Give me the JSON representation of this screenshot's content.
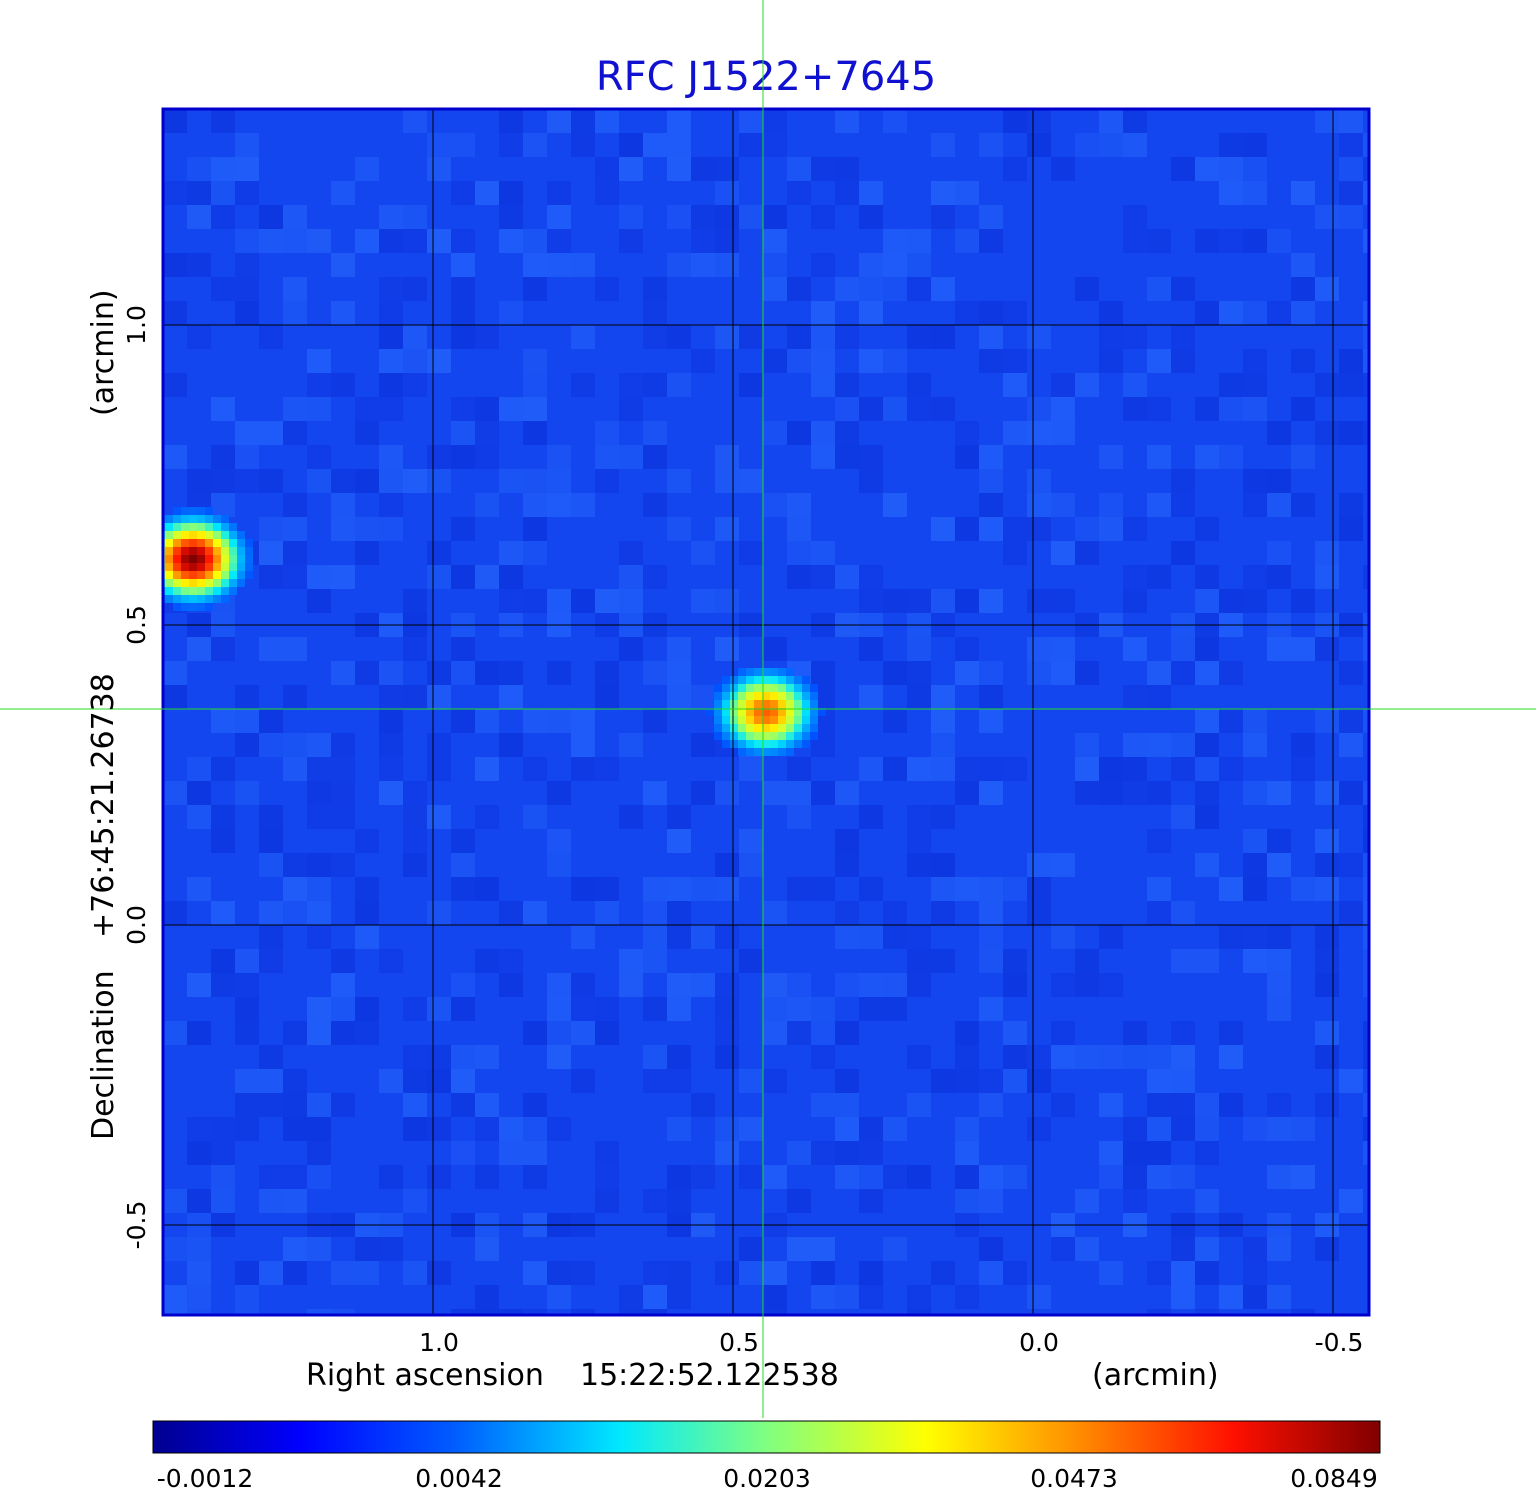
{
  "title": "RFC J1522+7645",
  "colors": {
    "title": "#1010d0",
    "frame": "#0000cc",
    "grid": "#000000",
    "crosshair": "#22dd22",
    "background": "#1446f0"
  },
  "xaxis": {
    "label": "Right ascension",
    "center": "15:22:52.122538",
    "unit": "(arcmin)"
  },
  "yaxis": {
    "label": "Declination",
    "center": "+76:45:21.26738",
    "unit": "(arcmin)"
  },
  "colorbar": {
    "colormap": "jet",
    "scale": "nonlinear",
    "tick_labels": [
      "-0.0012",
      "0.0042",
      "0.0203",
      "0.0473",
      "0.0849"
    ],
    "tick_values": [
      -0.0012,
      0.0042,
      0.0203,
      0.0473,
      0.0849
    ]
  },
  "chart_data": {
    "type": "heatmap",
    "title": "RFC J1522+7645",
    "xlabel": "Right ascension  15:22:52.122538 (arcmin)",
    "ylabel": "Declination  +76:45:21.26738 (arcmin)",
    "xlim": [
      1.45,
      -0.56
    ],
    "ylim": [
      -0.65,
      1.36
    ],
    "x_reversed": true,
    "xticks": [
      1.0,
      0.5,
      0.0,
      -0.5
    ],
    "xtick_labels": [
      "1.0",
      "0.5",
      "0.0",
      "-0.5"
    ],
    "yticks": [
      1.0,
      0.5,
      0.0,
      -0.5
    ],
    "ytick_labels": [
      "1.0",
      "0.5",
      "0.0",
      "-0.5"
    ],
    "grid": true,
    "crosshair": {
      "x": 0.45,
      "y": 0.36
    },
    "value_range": [
      -0.0012,
      0.0849
    ],
    "background_level": 0.0015,
    "sources": [
      {
        "name": "",
        "x": 1.4,
        "y": 0.61,
        "peak": 0.0849
      },
      {
        "name": "",
        "x": 0.445,
        "y": 0.355,
        "peak": 0.055
      }
    ]
  }
}
